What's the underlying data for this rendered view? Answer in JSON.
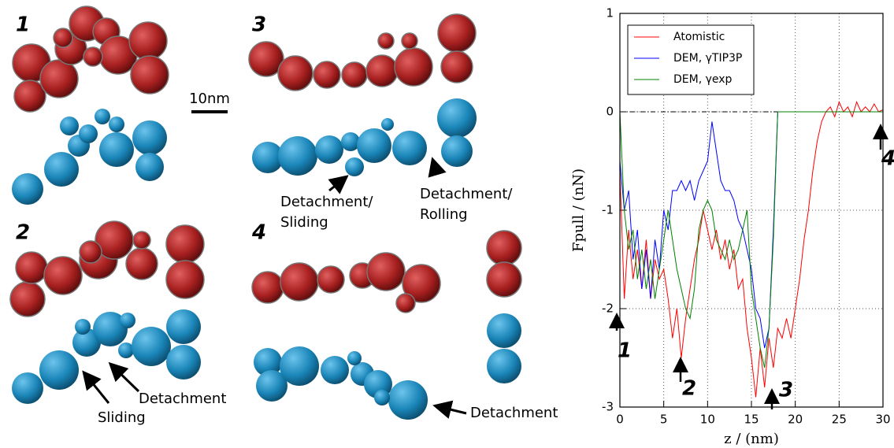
{
  "figure_labels": {
    "panels": [
      "1",
      "2",
      "3",
      "4"
    ],
    "scale_bar": "10nm",
    "callouts": [
      "Detachment/",
      "Sliding",
      "Detachment/",
      "Rolling",
      "Sliding",
      "Detachment",
      "Detachment"
    ]
  },
  "chart_data": {
    "type": "line",
    "xlabel": "z / (nm)",
    "ylabel": "Fpull / (nN)",
    "x": [
      0,
      0.5,
      1,
      1.5,
      2,
      2.5,
      3,
      3.5,
      4,
      4.5,
      5,
      5.5,
      6,
      6.5,
      7,
      7.5,
      8,
      8.5,
      9,
      9.5,
      10,
      10.5,
      11,
      11.5,
      12,
      12.5,
      13,
      13.5,
      14,
      14.5,
      15,
      15.5,
      16,
      16.5,
      17,
      17.5,
      18,
      18.5,
      19,
      19.5,
      20,
      20.5,
      21,
      21.5,
      22,
      22.5,
      23,
      23.5,
      24,
      24.5,
      25,
      25.5,
      26,
      26.5,
      27,
      27.5,
      28,
      28.5,
      29,
      29.5,
      30
    ],
    "series": [
      {
        "name": "Atomistic",
        "color": "#ff0000",
        "values": [
          -0.6,
          -1.9,
          -1.2,
          -1.7,
          -1.4,
          -1.8,
          -1.3,
          -1.9,
          -1.5,
          -1.7,
          -1.6,
          -1.9,
          -2.3,
          -2.0,
          -2.5,
          -2.1,
          -1.8,
          -1.5,
          -1.3,
          -1.0,
          -1.2,
          -1.4,
          -1.2,
          -1.5,
          -1.3,
          -1.6,
          -1.4,
          -1.8,
          -1.7,
          -2.2,
          -2.5,
          -2.9,
          -2.4,
          -2.8,
          -2.3,
          -2.6,
          -2.2,
          -2.3,
          -2.1,
          -2.3,
          -2.0,
          -1.7,
          -1.3,
          -1.0,
          -0.6,
          -0.3,
          -0.1,
          0.0,
          0.05,
          -0.05,
          0.1,
          0.0,
          0.05,
          -0.05,
          0.1,
          0.0,
          0.05,
          0.0,
          0.08,
          0.0,
          0.02
        ]
      },
      {
        "name": "DEM, γTIP3P",
        "color": "#0000ff",
        "values": [
          -0.5,
          -1.0,
          -0.8,
          -1.5,
          -1.2,
          -1.8,
          -1.4,
          -1.9,
          -1.3,
          -1.6,
          -1.0,
          -1.2,
          -0.8,
          -0.8,
          -0.7,
          -0.8,
          -0.7,
          -0.9,
          -0.7,
          -0.6,
          -0.5,
          -0.1,
          -0.4,
          -0.7,
          -0.8,
          -0.8,
          -0.9,
          -1.1,
          -1.2,
          -1.4,
          -1.6,
          -2.0,
          -2.1,
          -2.4,
          -2.2,
          -1.2,
          0,
          0,
          0,
          0,
          0,
          0,
          0,
          0,
          0,
          0,
          0,
          0,
          0,
          0,
          0,
          0,
          0,
          0,
          0,
          0,
          0,
          0,
          0,
          0,
          0
        ]
      },
      {
        "name": "DEM, γexp",
        "color": "#008000",
        "values": [
          0,
          -1.0,
          -1.4,
          -1.2,
          -1.7,
          -1.4,
          -1.8,
          -1.5,
          -1.9,
          -1.6,
          -1.3,
          -1.0,
          -1.3,
          -1.6,
          -1.8,
          -2.0,
          -2.1,
          -1.8,
          -1.2,
          -1.0,
          -0.9,
          -1.0,
          -1.3,
          -1.4,
          -1.5,
          -1.3,
          -1.5,
          -1.4,
          -1.2,
          -1.0,
          -1.8,
          -2.1,
          -2.4,
          -2.6,
          -2.2,
          -1.3,
          0,
          0,
          0,
          0,
          0,
          0,
          0,
          0,
          0,
          0,
          0,
          0,
          0,
          0,
          0,
          0,
          0,
          0,
          0,
          0,
          0,
          0,
          0,
          0,
          0
        ]
      }
    ],
    "xlim": [
      0,
      30
    ],
    "ylim": [
      -3,
      1
    ],
    "xticks": [
      0,
      5,
      10,
      15,
      20,
      25,
      30
    ],
    "yticks": [
      -3,
      -2,
      -1,
      0,
      1
    ],
    "grid": true,
    "legend": "upper left",
    "annotations": [
      "1",
      "2",
      "3",
      "4"
    ]
  }
}
